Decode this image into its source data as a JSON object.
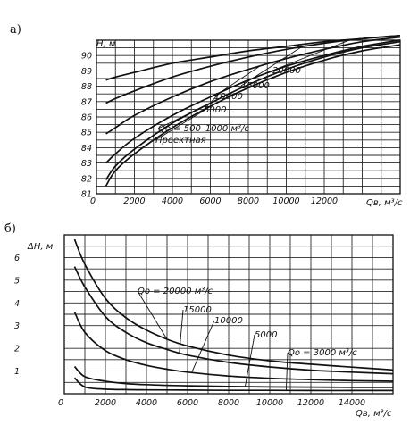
{
  "colors": {
    "ink": "#111111",
    "grid": "#2a2a2a",
    "background": "#ffffff"
  },
  "chart_data": [
    {
      "type": "line",
      "panel_label": "a)",
      "xlabel": "Qв, м³/c",
      "ylabel": "H, м",
      "xlim": [
        0,
        16000
      ],
      "ylim": [
        81,
        91
      ],
      "grid": true,
      "x_ticks": [
        "0",
        "2000",
        "4000",
        "6000",
        "8000",
        "10000",
        "12000"
      ],
      "y_ticks": [
        "81",
        "82",
        "83",
        "84",
        "85",
        "86",
        "87",
        "88",
        "89",
        "90"
      ],
      "series": [
        {
          "name": "Проектная",
          "x": [
            500,
            1000,
            2000,
            4000,
            6000,
            8000,
            10000,
            12000,
            14000,
            16000
          ],
          "y": [
            81.5,
            82.5,
            83.6,
            85.3,
            86.7,
            87.9,
            88.9,
            89.7,
            90.3,
            90.7
          ]
        },
        {
          "name": "Qо = 500–1000 м³/c",
          "x": [
            500,
            1000,
            2000,
            4000,
            6000,
            8000,
            10000,
            12000,
            14000,
            16000
          ],
          "y": [
            81.9,
            82.8,
            83.9,
            85.6,
            86.9,
            88.1,
            89.1,
            89.9,
            90.5,
            90.9
          ]
        },
        {
          "name": "5000",
          "x": [
            500,
            1000,
            2000,
            4000,
            6000,
            8000,
            10000,
            12000,
            14000,
            16000
          ],
          "y": [
            83.0,
            83.6,
            84.6,
            86.1,
            87.3,
            88.4,
            89.3,
            90.0,
            90.6,
            91.0
          ]
        },
        {
          "name": "10000",
          "x": [
            500,
            1000,
            2000,
            4000,
            6000,
            8000,
            10000,
            12000,
            14000,
            16000
          ],
          "y": [
            84.9,
            85.3,
            86.1,
            87.3,
            88.3,
            89.1,
            89.8,
            90.4,
            90.9,
            91.2
          ]
        },
        {
          "name": "15000",
          "x": [
            500,
            1000,
            2000,
            4000,
            6000,
            8000,
            10000,
            12000,
            14000,
            16000
          ],
          "y": [
            86.9,
            87.2,
            87.7,
            88.6,
            89.3,
            89.9,
            90.4,
            90.8,
            91.1,
            91.3
          ]
        },
        {
          "name": "20000",
          "x": [
            500,
            1000,
            2000,
            4000,
            6000,
            8000,
            10000,
            12000,
            14000,
            16000
          ],
          "y": [
            88.4,
            88.6,
            88.9,
            89.5,
            89.9,
            90.3,
            90.6,
            90.9,
            91.1,
            91.3
          ]
        }
      ]
    },
    {
      "type": "line",
      "panel_label": "б)",
      "xlabel": "Qв, м³/c",
      "ylabel": "ΔH, м",
      "xlim": [
        0,
        16000
      ],
      "ylim": [
        0,
        7
      ],
      "grid": true,
      "x_ticks": [
        "0",
        "2000",
        "4000",
        "6000",
        "8000",
        "10000",
        "12000",
        "14000"
      ],
      "y_ticks": [
        "1",
        "2",
        "3",
        "4",
        "5",
        "6"
      ],
      "series": [
        {
          "name": "Qо = 20000 м³/c",
          "x": [
            500,
            1000,
            2000,
            3000,
            4000,
            5000,
            6000,
            8000,
            10000,
            12000,
            14000,
            16000
          ],
          "y": [
            6.8,
            5.7,
            4.2,
            3.35,
            2.8,
            2.4,
            2.1,
            1.7,
            1.45,
            1.3,
            1.17,
            1.05
          ]
        },
        {
          "name": "15000",
          "x": [
            500,
            1000,
            2000,
            3000,
            4000,
            5000,
            6000,
            8000,
            10000,
            12000,
            14000,
            16000
          ],
          "y": [
            5.6,
            4.7,
            3.4,
            2.7,
            2.25,
            1.95,
            1.7,
            1.38,
            1.18,
            1.04,
            0.95,
            0.88
          ]
        },
        {
          "name": "10000",
          "x": [
            500,
            1000,
            2000,
            3000,
            4000,
            5000,
            6000,
            8000,
            10000,
            12000,
            14000,
            16000
          ],
          "y": [
            3.6,
            2.7,
            1.9,
            1.5,
            1.25,
            1.08,
            0.95,
            0.78,
            0.68,
            0.62,
            0.58,
            0.55
          ]
        },
        {
          "name": "5000",
          "x": [
            500,
            1000,
            2000,
            3000,
            4000,
            6000,
            8000,
            10000,
            12000,
            14000,
            16000
          ],
          "y": [
            1.2,
            0.75,
            0.55,
            0.45,
            0.4,
            0.35,
            0.32,
            0.3,
            0.29,
            0.28,
            0.28
          ]
        },
        {
          "name": "Qо = 3000 м³/c",
          "x": [
            500,
            1000,
            2000,
            3000,
            4000,
            6000,
            8000,
            10000,
            12000,
            14000,
            16000
          ],
          "y": [
            0.7,
            0.3,
            0.2,
            0.18,
            0.17,
            0.16,
            0.15,
            0.15,
            0.14,
            0.14,
            0.14
          ]
        }
      ]
    }
  ]
}
